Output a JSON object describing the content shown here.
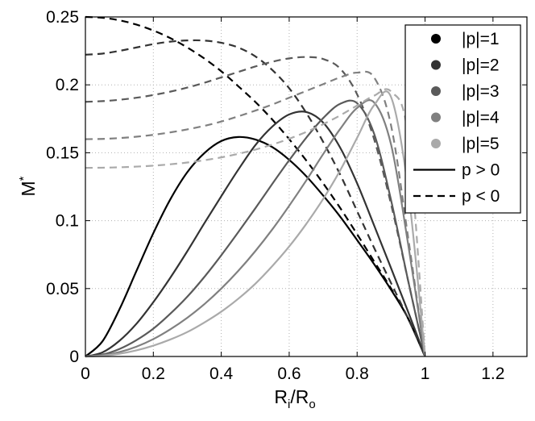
{
  "chart_data": {
    "type": "line",
    "title": "",
    "xlabel": "R_i/R_o",
    "ylabel": "M*",
    "xlabel_parts": {
      "main": "R",
      "sub1": "i",
      "sep": "/R",
      "sub2": "o"
    },
    "ylabel_parts": {
      "main": "M",
      "sup": "*"
    },
    "xlim": [
      0,
      1.3
    ],
    "ylim": [
      0,
      0.25
    ],
    "xticks": [
      0,
      0.2,
      0.4,
      0.6,
      0.8,
      1,
      1.2
    ],
    "xtick_labels": [
      "0",
      "0.2",
      "0.4",
      "0.6",
      "0.8",
      "1",
      "1.2"
    ],
    "yticks": [
      0,
      0.05,
      0.1,
      0.15,
      0.2,
      0.25
    ],
    "ytick_labels": [
      "0",
      "0.05",
      "0.1",
      "0.15",
      "0.2",
      "0.25"
    ],
    "grid": true,
    "legend_position": "top-right",
    "legend": [
      {
        "label": "|p|=1",
        "marker": "dot",
        "color": "#000000"
      },
      {
        "label": "|p|=2",
        "marker": "dot",
        "color": "#333333"
      },
      {
        "label": "|p|=3",
        "marker": "dot",
        "color": "#5a5a5a"
      },
      {
        "label": "|p|=4",
        "marker": "dot",
        "color": "#808080"
      },
      {
        "label": "|p|=5",
        "marker": "dot",
        "color": "#aaaaaa"
      },
      {
        "label": "p > 0",
        "marker": "solid",
        "color": "#000000"
      },
      {
        "label": "p < 0",
        "marker": "dashed",
        "color": "#000000"
      }
    ],
    "series": [
      {
        "p": 1,
        "sign": "positive",
        "color": "#000000",
        "dash": "solid",
        "x": [
          0,
          0.05,
          0.1,
          0.15,
          0.2,
          0.25,
          0.3,
          0.35,
          0.4,
          0.45,
          0.5,
          0.55,
          0.6,
          0.65,
          0.7,
          0.75,
          0.8,
          0.85,
          0.9,
          0.95,
          1
        ],
        "y": [
          0,
          0.0111,
          0.0346,
          0.0628,
          0.0908,
          0.1157,
          0.1357,
          0.1497,
          0.1586,
          0.1616,
          0.1598,
          0.1542,
          0.1448,
          0.1328,
          0.1185,
          0.103,
          0.0857,
          0.068,
          0.0491,
          0.0281,
          0
        ]
      },
      {
        "p": 1,
        "sign": "negative",
        "color": "#000000",
        "dash": "dashed",
        "x": [
          0,
          0.05,
          0.1,
          0.15,
          0.2,
          0.25,
          0.3,
          0.35,
          0.4,
          0.45,
          0.5,
          0.55,
          0.6,
          0.65,
          0.7,
          0.75,
          0.8,
          0.85,
          0.9,
          0.95,
          1
        ],
        "y": [
          0.25,
          0.2494,
          0.2475,
          0.2444,
          0.24,
          0.2344,
          0.2275,
          0.2194,
          0.21,
          0.199,
          0.1875,
          0.1745,
          0.16,
          0.1444,
          0.1275,
          0.1094,
          0.09,
          0.07,
          0.05,
          0.028,
          0
        ]
      },
      {
        "p": 2,
        "sign": "positive",
        "color": "#333333",
        "dash": "solid",
        "x": [
          0,
          0.05,
          0.1,
          0.15,
          0.2,
          0.25,
          0.3,
          0.35,
          0.4,
          0.45,
          0.5,
          0.55,
          0.6,
          0.65,
          0.7,
          0.75,
          0.8,
          0.85,
          0.9,
          0.95,
          1
        ],
        "y": [
          0,
          0.003,
          0.0115,
          0.024,
          0.04,
          0.058,
          0.0775,
          0.098,
          0.118,
          0.1375,
          0.1555,
          0.1692,
          0.1782,
          0.18,
          0.1722,
          0.1538,
          0.1275,
          0.0965,
          0.065,
          0.033,
          0
        ]
      },
      {
        "p": 2,
        "sign": "negative",
        "color": "#333333",
        "dash": "dashed",
        "x": [
          0,
          0.05,
          0.1,
          0.15,
          0.2,
          0.25,
          0.3,
          0.35,
          0.4,
          0.45,
          0.5,
          0.55,
          0.6,
          0.65,
          0.7,
          0.75,
          0.8,
          0.85,
          0.9,
          0.95,
          1
        ],
        "y": [
          0.2222,
          0.223,
          0.225,
          0.2275,
          0.23,
          0.2318,
          0.2327,
          0.2326,
          0.231,
          0.2275,
          0.221,
          0.211,
          0.1975,
          0.1795,
          0.158,
          0.134,
          0.107,
          0.08,
          0.054,
          0.028,
          0
        ]
      },
      {
        "p": 3,
        "sign": "positive",
        "color": "#5a5a5a",
        "dash": "solid",
        "x": [
          0,
          0.05,
          0.1,
          0.15,
          0.2,
          0.25,
          0.3,
          0.35,
          0.4,
          0.45,
          0.5,
          0.55,
          0.6,
          0.65,
          0.7,
          0.75,
          0.8,
          0.85,
          0.9,
          0.95,
          1
        ],
        "y": [
          0,
          0.0014,
          0.0055,
          0.012,
          0.0205,
          0.0315,
          0.044,
          0.0585,
          0.0745,
          0.0915,
          0.109,
          0.127,
          0.1445,
          0.161,
          0.1755,
          0.186,
          0.1865,
          0.164,
          0.115,
          0.056,
          0
        ]
      },
      {
        "p": 3,
        "sign": "negative",
        "color": "#5a5a5a",
        "dash": "dashed",
        "x": [
          0,
          0.05,
          0.1,
          0.15,
          0.2,
          0.25,
          0.3,
          0.35,
          0.4,
          0.45,
          0.5,
          0.55,
          0.6,
          0.65,
          0.7,
          0.75,
          0.8,
          0.85,
          0.9,
          0.95,
          1
        ],
        "y": [
          0.1875,
          0.188,
          0.189,
          0.1905,
          0.1925,
          0.195,
          0.198,
          0.2015,
          0.2055,
          0.2095,
          0.2135,
          0.217,
          0.2195,
          0.2205,
          0.219,
          0.212,
          0.193,
          0.16,
          0.112,
          0.056,
          0
        ]
      },
      {
        "p": 4,
        "sign": "positive",
        "color": "#808080",
        "dash": "solid",
        "x": [
          0,
          0.05,
          0.1,
          0.15,
          0.2,
          0.25,
          0.3,
          0.35,
          0.4,
          0.45,
          0.5,
          0.55,
          0.6,
          0.65,
          0.7,
          0.75,
          0.8,
          0.85,
          0.9,
          0.95,
          1
        ],
        "y": [
          0,
          0.0008,
          0.0032,
          0.0072,
          0.0128,
          0.02,
          0.0285,
          0.0385,
          0.05,
          0.063,
          0.0775,
          0.0935,
          0.111,
          0.1295,
          0.149,
          0.1675,
          0.183,
          0.187,
          0.156,
          0.083,
          0
        ]
      },
      {
        "p": 4,
        "sign": "negative",
        "color": "#808080",
        "dash": "dashed",
        "x": [
          0,
          0.05,
          0.1,
          0.15,
          0.2,
          0.25,
          0.3,
          0.35,
          0.4,
          0.45,
          0.5,
          0.55,
          0.6,
          0.65,
          0.7,
          0.75,
          0.8,
          0.85,
          0.9,
          0.95,
          1
        ],
        "y": [
          0.16,
          0.1602,
          0.1608,
          0.1618,
          0.1632,
          0.165,
          0.1672,
          0.1698,
          0.173,
          0.1768,
          0.181,
          0.1855,
          0.1905,
          0.1955,
          0.2005,
          0.2055,
          0.209,
          0.2055,
          0.17,
          0.088,
          0
        ]
      },
      {
        "p": 5,
        "sign": "positive",
        "color": "#aaaaaa",
        "dash": "solid",
        "x": [
          0,
          0.05,
          0.1,
          0.15,
          0.2,
          0.25,
          0.3,
          0.35,
          0.4,
          0.45,
          0.5,
          0.55,
          0.6,
          0.65,
          0.7,
          0.75,
          0.8,
          0.85,
          0.9,
          0.95,
          1
        ],
        "y": [
          0,
          0.0005,
          0.002,
          0.0045,
          0.008,
          0.0125,
          0.018,
          0.025,
          0.033,
          0.0425,
          0.0535,
          0.0665,
          0.081,
          0.0975,
          0.116,
          0.137,
          0.161,
          0.185,
          0.191,
          0.123,
          0
        ]
      },
      {
        "p": 5,
        "sign": "negative",
        "color": "#aaaaaa",
        "dash": "dashed",
        "x": [
          0,
          0.05,
          0.1,
          0.15,
          0.2,
          0.25,
          0.3,
          0.35,
          0.4,
          0.45,
          0.5,
          0.55,
          0.6,
          0.65,
          0.7,
          0.75,
          0.8,
          0.85,
          0.9,
          0.95,
          1
        ],
        "y": [
          0.1389,
          0.139,
          0.1393,
          0.1398,
          0.1405,
          0.1415,
          0.1428,
          0.1445,
          0.1466,
          0.1492,
          0.1523,
          0.156,
          0.1603,
          0.1653,
          0.171,
          0.1775,
          0.1848,
          0.192,
          0.195,
          0.162,
          0
        ]
      }
    ]
  }
}
